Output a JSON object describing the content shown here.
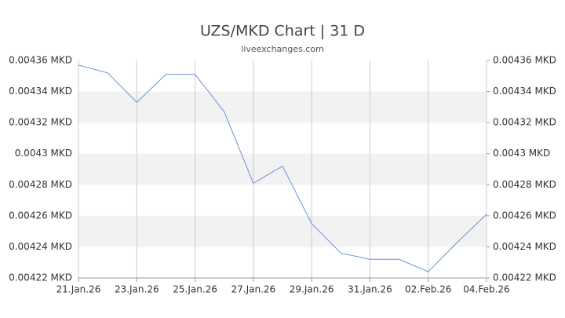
{
  "chart_data": {
    "type": "line",
    "title": "UZS/MKD Chart | 31 D",
    "subtitle": "liveexchanges.com",
    "categories": [
      "21.Jan.26",
      null,
      "23.Jan.26",
      null,
      "25.Jan.26",
      null,
      "27.Jan.26",
      null,
      "29.Jan.26",
      null,
      "31.Jan.26",
      null,
      "02.Feb.26",
      null,
      "04.Feb.26"
    ],
    "series": [
      {
        "name": "UZS/MKD",
        "color": "#6a8fdc",
        "values": [
          0.004357,
          0.004352,
          0.004333,
          0.004351,
          0.004351,
          0.004327,
          0.004281,
          0.004292,
          0.004255,
          0.004236,
          0.004232,
          0.004232,
          0.004224,
          0.004243,
          0.004261
        ]
      }
    ],
    "ylim": [
      0.00422,
      0.00436
    ],
    "yticks": [
      {
        "value": 0.00422,
        "label": "0.00422 MKD"
      },
      {
        "value": 0.00424,
        "label": "0.00424 MKD"
      },
      {
        "value": 0.00426,
        "label": "0.00426 MKD"
      },
      {
        "value": 0.00428,
        "label": "0.00428 MKD"
      },
      {
        "value": 0.0043,
        "label": "0.0043 MKD"
      },
      {
        "value": 0.00432,
        "label": "0.00432 MKD"
      },
      {
        "value": 0.00434,
        "label": "0.00434 MKD"
      },
      {
        "value": 0.00436,
        "label": "0.00436 MKD"
      }
    ],
    "grid": true
  }
}
